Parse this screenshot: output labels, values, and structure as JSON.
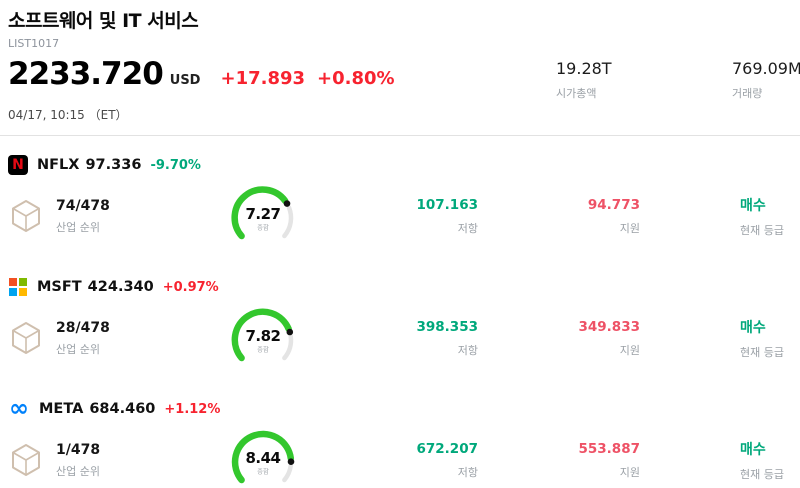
{
  "header": {
    "title": "소프트웨어 및 IT 서비스",
    "list_id": "LIST1017",
    "price": "2233.720",
    "currency": "USD",
    "change": "+17.893",
    "change_pct": "+0.80%",
    "datetime": "04/17, 10:15 （ET）",
    "market_cap_value": "19.28T",
    "market_cap_label": "시가총액",
    "volume_value": "769.09M",
    "volume_label": "거래량"
  },
  "labels": {
    "industry_rank": "산업 순위",
    "resistance": "저항",
    "support": "지원",
    "current_rating": "현재 등급",
    "gauge_caption": "종합"
  },
  "colors": {
    "up": "#f7232f",
    "down": "#00a87b",
    "resistance": "#00a87b",
    "support": "#ee5266",
    "rating": "#00a87b",
    "gauge_arc": "#33c72d",
    "gauge_track": "#e4e4e4",
    "gauge_needle": "#111111"
  },
  "icons": {
    "nflx_glyph": "N",
    "msft_glyph": "four-color-squares",
    "meta_glyph": "∞",
    "rank_badge": "hexagon-box-icon"
  },
  "stocks": [
    {
      "ticker": "NFLX",
      "price": "97.336",
      "change": "-9.70%",
      "direction": "down",
      "rank": "74/478",
      "score": "7.27",
      "score_value": 7.27,
      "resistance": "107.163",
      "support": "94.773",
      "rating": "매수"
    },
    {
      "ticker": "MSFT",
      "price": "424.340",
      "change": "+0.97%",
      "direction": "up",
      "rank": "28/478",
      "score": "7.82",
      "score_value": 7.82,
      "resistance": "398.353",
      "support": "349.833",
      "rating": "매수"
    },
    {
      "ticker": "META",
      "price": "684.460",
      "change": "+1.12%",
      "direction": "up",
      "rank": "1/478",
      "score": "8.44",
      "score_value": 8.44,
      "resistance": "672.207",
      "support": "553.887",
      "rating": "매수"
    }
  ]
}
